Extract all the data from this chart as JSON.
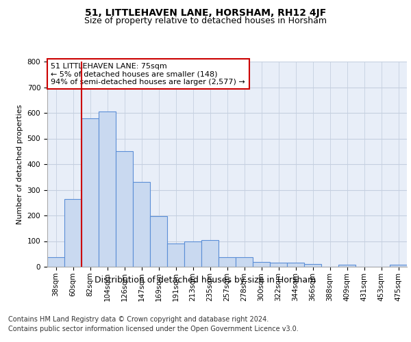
{
  "title": "51, LITTLEHAVEN LANE, HORSHAM, RH12 4JF",
  "subtitle": "Size of property relative to detached houses in Horsham",
  "xlabel": "Distribution of detached houses by size in Horsham",
  "ylabel": "Number of detached properties",
  "categories": [
    "38sqm",
    "60sqm",
    "82sqm",
    "104sqm",
    "126sqm",
    "147sqm",
    "169sqm",
    "191sqm",
    "213sqm",
    "235sqm",
    "257sqm",
    "278sqm",
    "300sqm",
    "322sqm",
    "344sqm",
    "366sqm",
    "388sqm",
    "409sqm",
    "431sqm",
    "453sqm",
    "475sqm"
  ],
  "values": [
    37,
    265,
    580,
    605,
    450,
    330,
    197,
    90,
    100,
    105,
    37,
    37,
    18,
    17,
    16,
    11,
    0,
    8,
    0,
    0,
    8
  ],
  "bar_color": "#c9d9f0",
  "bar_edge_color": "#5b8ed6",
  "vline_x_index": 2,
  "annotation_text_line1": "51 LITTLEHAVEN LANE: 75sqm",
  "annotation_text_line2": "← 5% of detached houses are smaller (148)",
  "annotation_text_line3": "94% of semi-detached houses are larger (2,577) →",
  "ylim": [
    0,
    800
  ],
  "yticks": [
    0,
    100,
    200,
    300,
    400,
    500,
    600,
    700,
    800
  ],
  "grid_color": "#c5cfe0",
  "background_color": "#e8eef8",
  "footer_line1": "Contains HM Land Registry data © Crown copyright and database right 2024.",
  "footer_line2": "Contains public sector information licensed under the Open Government Licence v3.0.",
  "title_fontsize": 10,
  "subtitle_fontsize": 9,
  "xlabel_fontsize": 9,
  "ylabel_fontsize": 8,
  "tick_fontsize": 7.5,
  "annotation_fontsize": 8,
  "footer_fontsize": 7
}
